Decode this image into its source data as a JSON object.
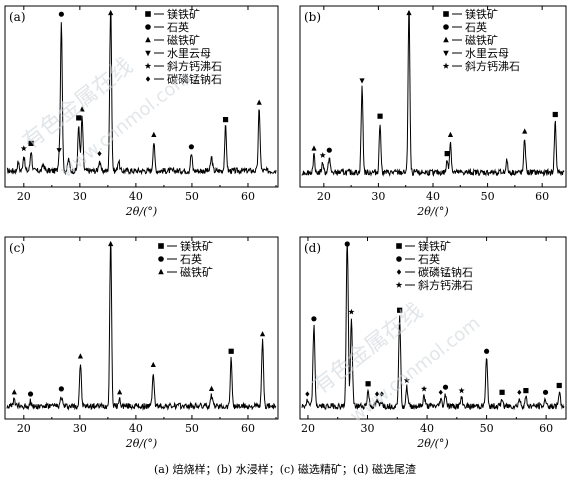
{
  "caption": "(a) 焙烧样；(b) 水浸样；(c) 磁选精矿；(d) 磁选尾渣",
  "watermark": {
    "text_cn": "有色金属在线",
    "text_url": "www.cnnmol.com"
  },
  "chart_data": [
    {
      "type": "line",
      "panel": "(a)",
      "xlabel": "2θ/(°)",
      "xlim": [
        17,
        65
      ],
      "xticks": [
        20,
        30,
        40,
        50,
        60
      ],
      "legend": [
        {
          "symbol": "■",
          "label": "镁铁矿"
        },
        {
          "symbol": "●",
          "label": "石英"
        },
        {
          "symbol": "▲",
          "label": "磁铁矿"
        },
        {
          "symbol": "▼",
          "label": "水里云母"
        },
        {
          "symbol": "★",
          "label": "斜方钙沸石"
        },
        {
          "symbol": "◆",
          "label": "碳磷锰钠石"
        }
      ],
      "baseline": 0.06,
      "peaks": [
        {
          "x": 19.0,
          "h": 0.05,
          "m": ""
        },
        {
          "x": 20.0,
          "h": 0.09,
          "m": "★"
        },
        {
          "x": 21.3,
          "h": 0.12,
          "m": "■"
        },
        {
          "x": 23.5,
          "h": 0.04,
          "m": ""
        },
        {
          "x": 26.3,
          "h": 0.08,
          "m": "▼"
        },
        {
          "x": 26.7,
          "h": 0.88,
          "m": "●"
        },
        {
          "x": 28.0,
          "h": 0.07,
          "m": ""
        },
        {
          "x": 29.8,
          "h": 0.27,
          "m": "■"
        },
        {
          "x": 30.4,
          "h": 0.32,
          "m": "▲"
        },
        {
          "x": 33.5,
          "h": 0.06,
          "m": "◆"
        },
        {
          "x": 35.5,
          "h": 0.99,
          "m": "▲"
        },
        {
          "x": 36.9,
          "h": 0.06,
          "m": ""
        },
        {
          "x": 43.2,
          "h": 0.17,
          "m": "▲"
        },
        {
          "x": 49.9,
          "h": 0.1,
          "m": "●"
        },
        {
          "x": 53.5,
          "h": 0.08,
          "m": ""
        },
        {
          "x": 56.0,
          "h": 0.26,
          "m": "■"
        },
        {
          "x": 62.0,
          "h": 0.36,
          "m": "▲"
        }
      ]
    },
    {
      "type": "line",
      "panel": "(b)",
      "xlabel": "2θ/(°)",
      "xlim": [
        16,
        64
      ],
      "xticks": [
        20,
        30,
        40,
        50,
        60
      ],
      "legend": [
        {
          "symbol": "■",
          "label": "镁铁矿"
        },
        {
          "symbol": "●",
          "label": "石英"
        },
        {
          "symbol": "▲",
          "label": "磁铁矿"
        },
        {
          "symbol": "▼",
          "label": "水里云母"
        },
        {
          "symbol": "★",
          "label": "斜方钙沸石"
        }
      ],
      "baseline": 0.05,
      "peaks": [
        {
          "x": 18.2,
          "h": 0.1,
          "m": "▲"
        },
        {
          "x": 19.8,
          "h": 0.06,
          "m": "★"
        },
        {
          "x": 21.0,
          "h": 0.09,
          "m": "●"
        },
        {
          "x": 27.0,
          "h": 0.5,
          "m": "▼"
        },
        {
          "x": 30.3,
          "h": 0.29,
          "m": "■"
        },
        {
          "x": 35.6,
          "h": 0.99,
          "m": "▲"
        },
        {
          "x": 42.6,
          "h": 0.07,
          "m": "■"
        },
        {
          "x": 43.2,
          "h": 0.18,
          "m": "▲"
        },
        {
          "x": 53.5,
          "h": 0.07,
          "m": ""
        },
        {
          "x": 56.8,
          "h": 0.2,
          "m": "▲"
        },
        {
          "x": 62.4,
          "h": 0.3,
          "m": "■"
        }
      ]
    },
    {
      "type": "line",
      "panel": "(c)",
      "xlabel": "2θ/(°)",
      "xlim": [
        17,
        65
      ],
      "xticks": [
        20,
        30,
        40,
        50,
        60
      ],
      "legend": [
        {
          "symbol": "■",
          "label": "镁铁矿"
        },
        {
          "symbol": "●",
          "label": "石英"
        },
        {
          "symbol": "▲",
          "label": "磁铁矿"
        }
      ],
      "baseline": 0.04,
      "peaks": [
        {
          "x": 18.3,
          "h": 0.04,
          "m": "▲"
        },
        {
          "x": 21.2,
          "h": 0.03,
          "m": "●"
        },
        {
          "x": 26.7,
          "h": 0.06,
          "m": "●"
        },
        {
          "x": 30.1,
          "h": 0.25,
          "m": "▲"
        },
        {
          "x": 35.5,
          "h": 0.99,
          "m": "▲"
        },
        {
          "x": 37.1,
          "h": 0.04,
          "m": "▲"
        },
        {
          "x": 43.1,
          "h": 0.2,
          "m": "▲"
        },
        {
          "x": 53.5,
          "h": 0.06,
          "m": "▲"
        },
        {
          "x": 57.0,
          "h": 0.28,
          "m": "■"
        },
        {
          "x": 62.6,
          "h": 0.38,
          "m": "▲"
        }
      ]
    },
    {
      "type": "line",
      "panel": "(d)",
      "xlabel": "2θ/(°)",
      "xlim": [
        19,
        63
      ],
      "xticks": [
        20,
        30,
        40,
        50,
        60
      ],
      "legend": [
        {
          "symbol": "■",
          "label": "镁铁矿"
        },
        {
          "symbol": "●",
          "label": "石英"
        },
        {
          "symbol": "◆",
          "label": "碳磷锰钠石"
        },
        {
          "symbol": "★",
          "label": "斜方钙沸石"
        }
      ],
      "baseline": 0.04,
      "peaks": [
        {
          "x": 19.9,
          "h": 0.03,
          "m": "◆"
        },
        {
          "x": 21.0,
          "h": 0.47,
          "m": "●"
        },
        {
          "x": 26.6,
          "h": 0.98,
          "m": "●"
        },
        {
          "x": 27.3,
          "h": 0.51,
          "m": "★"
        },
        {
          "x": 30.1,
          "h": 0.09,
          "m": "■"
        },
        {
          "x": 31.6,
          "h": 0.03,
          "m": "◆"
        },
        {
          "x": 32.4,
          "h": 0.03,
          "m": "◆"
        },
        {
          "x": 35.4,
          "h": 0.52,
          "m": "■"
        },
        {
          "x": 36.6,
          "h": 0.11,
          "m": "★"
        },
        {
          "x": 39.5,
          "h": 0.06,
          "m": "★"
        },
        {
          "x": 42.3,
          "h": 0.04,
          "m": "◆"
        },
        {
          "x": 43.1,
          "h": 0.07,
          "m": "●"
        },
        {
          "x": 45.8,
          "h": 0.05,
          "m": "★"
        },
        {
          "x": 50.0,
          "h": 0.28,
          "m": "●"
        },
        {
          "x": 52.6,
          "h": 0.04,
          "m": "■"
        },
        {
          "x": 55.5,
          "h": 0.04,
          "m": "◆"
        },
        {
          "x": 56.6,
          "h": 0.05,
          "m": "■"
        },
        {
          "x": 59.9,
          "h": 0.04,
          "m": "●"
        },
        {
          "x": 62.2,
          "h": 0.08,
          "m": "■"
        }
      ]
    }
  ]
}
